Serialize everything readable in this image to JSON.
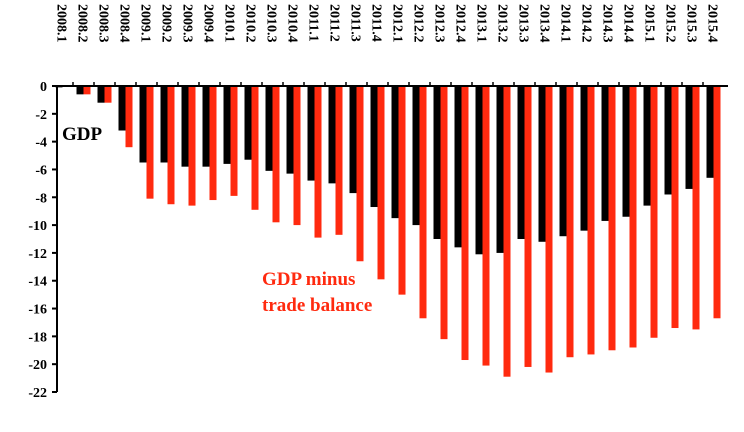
{
  "chart_data": {
    "type": "bar",
    "categories": [
      "2008.1",
      "2008.2",
      "2008.3",
      "2008.4",
      "2009.1",
      "2009.2",
      "2009.3",
      "2009.4",
      "2010.1",
      "2010.2",
      "2010.3",
      "2010.4",
      "2011.1",
      "2011.2",
      "2011.3",
      "2011.4",
      "2012.1",
      "2012.2",
      "2012.3",
      "2012.4",
      "2013.1",
      "2013.2",
      "2013.3",
      "2013.4",
      "2014.1",
      "2014.2",
      "2014.3",
      "2014.4",
      "2015.1",
      "2015.2",
      "2015.3",
      "2015.4"
    ],
    "series": [
      {
        "name": "GDP",
        "color": "#000000",
        "values": [
          -0.1,
          -0.6,
          -1.2,
          -3.2,
          -5.5,
          -5.5,
          -5.8,
          -5.8,
          -5.6,
          -5.3,
          -6.1,
          -6.3,
          -6.8,
          -7.0,
          -7.7,
          -8.7,
          -9.5,
          -10.0,
          -11.0,
          -11.6,
          -12.1,
          -12.0,
          -11.0,
          -11.2,
          -10.8,
          -10.4,
          -9.7,
          -9.4,
          -8.6,
          -7.8,
          -7.4,
          -6.6
        ]
      },
      {
        "name": "GDP minus trade balance",
        "color": "#ff2a0f",
        "values": [
          0,
          -0.6,
          -1.2,
          -4.4,
          -8.1,
          -8.5,
          -8.6,
          -8.2,
          -7.9,
          -8.9,
          -9.8,
          -10.0,
          -10.9,
          -10.7,
          -12.6,
          -13.9,
          -15.0,
          -16.7,
          -18.2,
          -19.7,
          -20.1,
          -20.9,
          -20.2,
          -20.6,
          -19.5,
          -19.3,
          -19.0,
          -18.8,
          -18.1,
          -17.4,
          -17.5,
          -16.7
        ]
      }
    ],
    "ylim": [
      -22,
      0
    ],
    "yticks": [
      0,
      -2,
      -4,
      -6,
      -8,
      -10,
      -12,
      -14,
      -16,
      -18,
      -20,
      -22
    ]
  }
}
